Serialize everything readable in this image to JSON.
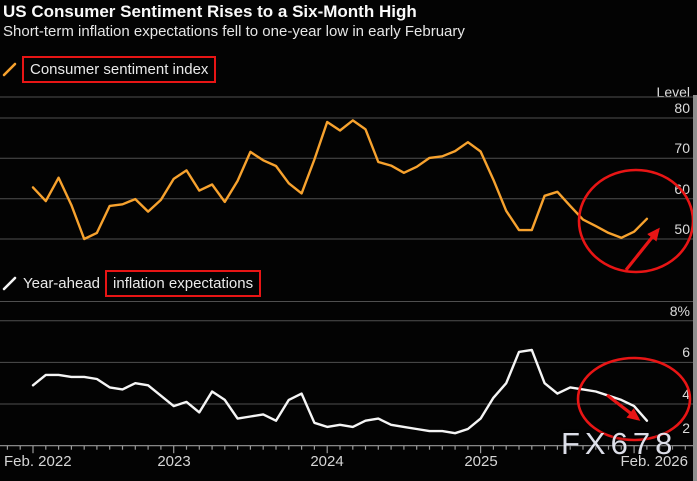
{
  "header": {
    "title": "US Consumer Sentiment Rises to a Six-Month High",
    "subtitle": "Short-term inflation expectations fell to one-year low in early February"
  },
  "legends": {
    "sentiment": {
      "label": "Consumer sentiment index"
    },
    "inflation": {
      "label_prefix": "Year-ahead",
      "label_boxed": "inflation expectations"
    }
  },
  "top_chart": {
    "unit_label": "Level",
    "y_tick_labels": [
      "80",
      "70",
      "60",
      "50"
    ]
  },
  "bottom_chart": {
    "y_tick_labels": [
      "8%",
      "6",
      "4",
      "2"
    ]
  },
  "x_axis": {
    "labels": [
      "Feb. 2022",
      "2023",
      "2024",
      "2025",
      "Feb. 2026"
    ]
  },
  "watermark": "FX678",
  "colors": {
    "background": "#030303",
    "sentiment_line": "#f7a22e",
    "inflation_line": "#f5f5f5",
    "grid": "#4f4f4f",
    "axis": "#9a9a9a",
    "annotation_red": "#e81515",
    "label_gray": "#dcdcdc"
  },
  "annotations": {
    "shapes": [
      "red-box-around-sentiment-legend",
      "red-box-around-inflation-expectations-text",
      "red-circle-top-chart-recent-upturn",
      "red-arrow-up-sentiment",
      "red-circle-bottom-chart-recent-drop",
      "red-arrow-down-inflation"
    ]
  },
  "chart_data": [
    {
      "type": "line",
      "name": "Consumer sentiment index",
      "unit": "Level",
      "color": "#f7a22e",
      "frequency": "monthly",
      "x_start": "2022-02",
      "x_end": "2026-02",
      "y_ticks": [
        80,
        70,
        60,
        50
      ],
      "ylim": [
        47,
        85
      ],
      "legend_position": "top-left",
      "grid": true,
      "values": [
        62.8,
        59.4,
        65.2,
        58.4,
        50.0,
        51.5,
        58.2,
        58.6,
        59.9,
        56.8,
        59.7,
        64.9,
        67.0,
        62.0,
        63.5,
        59.2,
        64.4,
        71.6,
        69.5,
        68.1,
        63.8,
        61.3,
        69.7,
        79.0,
        76.9,
        79.4,
        77.2,
        69.1,
        68.2,
        66.4,
        67.9,
        70.1,
        70.5,
        71.8,
        74.0,
        71.7,
        64.7,
        57.0,
        52.2,
        52.2,
        60.7,
        61.7,
        58.2,
        54.8,
        53.2,
        51.5,
        50.3,
        51.8,
        55.0
      ]
    },
    {
      "type": "line",
      "name": "Year-ahead inflation expectations",
      "unit": "%",
      "color": "#f5f5f5",
      "frequency": "monthly",
      "x_start": "2022-02",
      "x_end": "2026-02",
      "y_ticks": [
        8,
        6,
        4,
        2
      ],
      "ylim": [
        2,
        9
      ],
      "legend_position": "top-left",
      "grid": true,
      "values": [
        4.9,
        5.4,
        5.4,
        5.3,
        5.3,
        5.2,
        4.8,
        4.7,
        5.0,
        4.9,
        4.4,
        3.9,
        4.1,
        3.6,
        4.6,
        4.2,
        3.3,
        3.4,
        3.5,
        3.2,
        4.2,
        4.5,
        3.1,
        2.9,
        3.0,
        2.9,
        3.2,
        3.3,
        3.0,
        2.9,
        2.8,
        2.7,
        2.7,
        2.6,
        2.8,
        3.3,
        4.3,
        5.0,
        6.5,
        6.6,
        5.0,
        4.5,
        4.8,
        4.7,
        4.6,
        4.4,
        4.2,
        3.9,
        3.2
      ]
    }
  ]
}
